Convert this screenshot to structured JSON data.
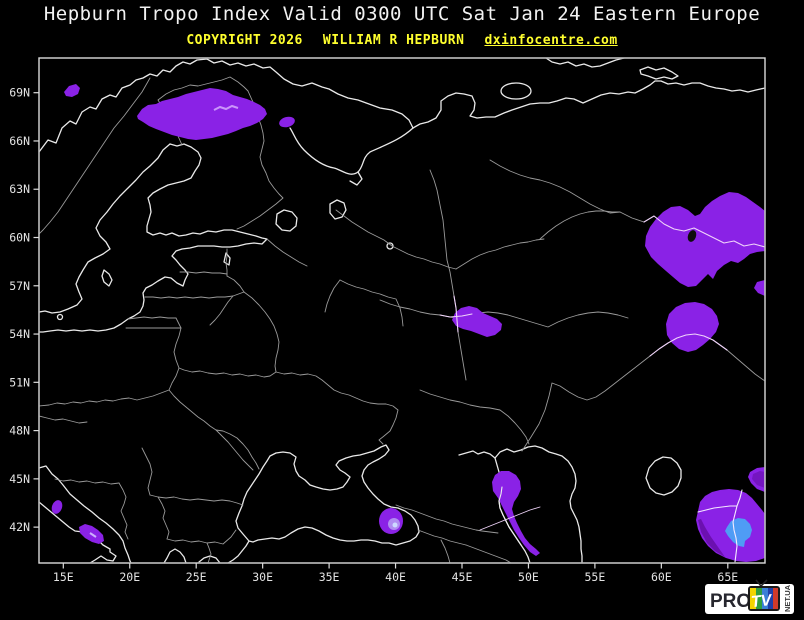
{
  "header": {
    "title": "Hepburn Tropo Index Valid 0300 UTC Sat Jan 24 Eastern Europe",
    "copyright": "COPYRIGHT 2026",
    "author": "WILLIAM R HEPBURN",
    "website": "dxinfocentre.com"
  },
  "map": {
    "lat_labels": [
      "69N",
      "66N",
      "63N",
      "60N",
      "57N",
      "54N",
      "51N",
      "48N",
      "45N",
      "42N"
    ],
    "lon_labels": [
      "15E",
      "20E",
      "25E",
      "30E",
      "35E",
      "40E",
      "45E",
      "50E",
      "55E",
      "60E",
      "65E"
    ],
    "tropo_regions": [
      "northern-scandinavia",
      "norwegian-coast-spot",
      "kola-spot",
      "ural-region-large",
      "ural-region-south",
      "mid-volga-spot",
      "caspian-west-coast-strip",
      "black-sea-spot",
      "adriatic-spot-small",
      "adriatic-spot-large",
      "southeast-corner-with-blue-core"
    ]
  },
  "colors": {
    "background": "#000000",
    "title_text": "#f2f2f2",
    "copyright_text": "#ffff2e",
    "coastline": "#e9e9e9",
    "country_border": "#9a9a9a",
    "frame": "#dcdcdc",
    "axis_text": "#e3e3e3",
    "tropo_purple": "#8a22e6",
    "tropo_purple_dark": "#6b10b0",
    "tropo_highlight": "#d9b3ff",
    "tropo_blue_core": "#4f9cf5",
    "overblob_line": "#f0d4fa"
  },
  "logo": {
    "pro": "PRO",
    "tv": "TV",
    "net": "NET.UA"
  }
}
